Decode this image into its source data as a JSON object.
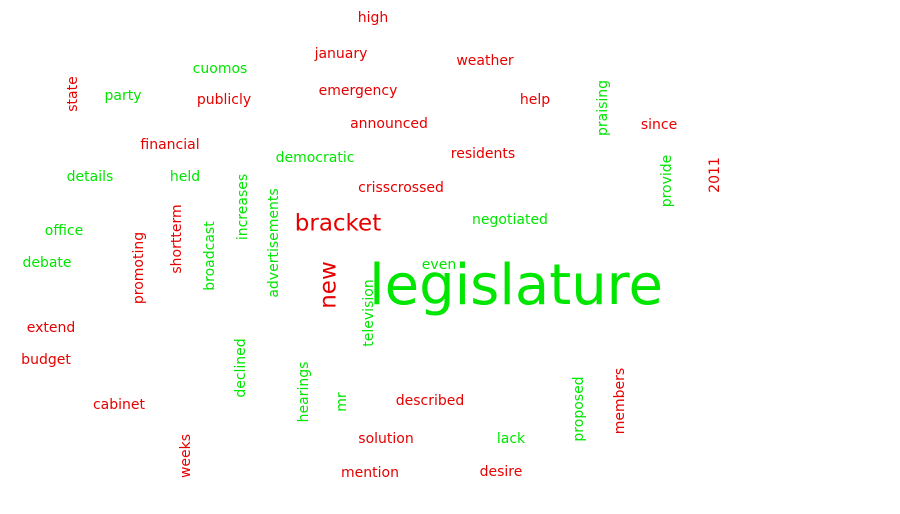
{
  "colors": {
    "red": "#e60000",
    "green": "#00e600"
  },
  "words": [
    {
      "text": "high",
      "color": "red"
    },
    {
      "text": "january",
      "color": "red"
    },
    {
      "text": "weather",
      "color": "red"
    },
    {
      "text": "cuomos",
      "color": "green"
    },
    {
      "text": "state",
      "color": "red"
    },
    {
      "text": "party",
      "color": "green"
    },
    {
      "text": "publicly",
      "color": "red"
    },
    {
      "text": "emergency",
      "color": "red"
    },
    {
      "text": "help",
      "color": "red"
    },
    {
      "text": "praising",
      "color": "green"
    },
    {
      "text": "since",
      "color": "red"
    },
    {
      "text": "announced",
      "color": "red"
    },
    {
      "text": "financial",
      "color": "red"
    },
    {
      "text": "democratic",
      "color": "green"
    },
    {
      "text": "residents",
      "color": "red"
    },
    {
      "text": "provide",
      "color": "green"
    },
    {
      "text": "2011",
      "color": "red"
    },
    {
      "text": "details",
      "color": "green"
    },
    {
      "text": "held",
      "color": "green"
    },
    {
      "text": "crisscrossed",
      "color": "red"
    },
    {
      "text": "increases",
      "color": "green"
    },
    {
      "text": "advertisements",
      "color": "green"
    },
    {
      "text": "shortterm",
      "color": "red"
    },
    {
      "text": "bracket",
      "color": "red"
    },
    {
      "text": "negotiated",
      "color": "green"
    },
    {
      "text": "office",
      "color": "green"
    },
    {
      "text": "broadcast",
      "color": "green"
    },
    {
      "text": "promoting",
      "color": "red"
    },
    {
      "text": "debate",
      "color": "green"
    },
    {
      "text": "new",
      "color": "red"
    },
    {
      "text": "even",
      "color": "green"
    },
    {
      "text": "legislature",
      "color": "green"
    },
    {
      "text": "television",
      "color": "green"
    },
    {
      "text": "extend",
      "color": "red"
    },
    {
      "text": "budget",
      "color": "red"
    },
    {
      "text": "declined",
      "color": "green"
    },
    {
      "text": "hearings",
      "color": "green"
    },
    {
      "text": "mr",
      "color": "green"
    },
    {
      "text": "described",
      "color": "red"
    },
    {
      "text": "proposed",
      "color": "green"
    },
    {
      "text": "members",
      "color": "red"
    },
    {
      "text": "cabinet",
      "color": "red"
    },
    {
      "text": "solution",
      "color": "red"
    },
    {
      "text": "lack",
      "color": "green"
    },
    {
      "text": "weeks",
      "color": "red"
    },
    {
      "text": "mention",
      "color": "red"
    },
    {
      "text": "desire",
      "color": "red"
    }
  ]
}
